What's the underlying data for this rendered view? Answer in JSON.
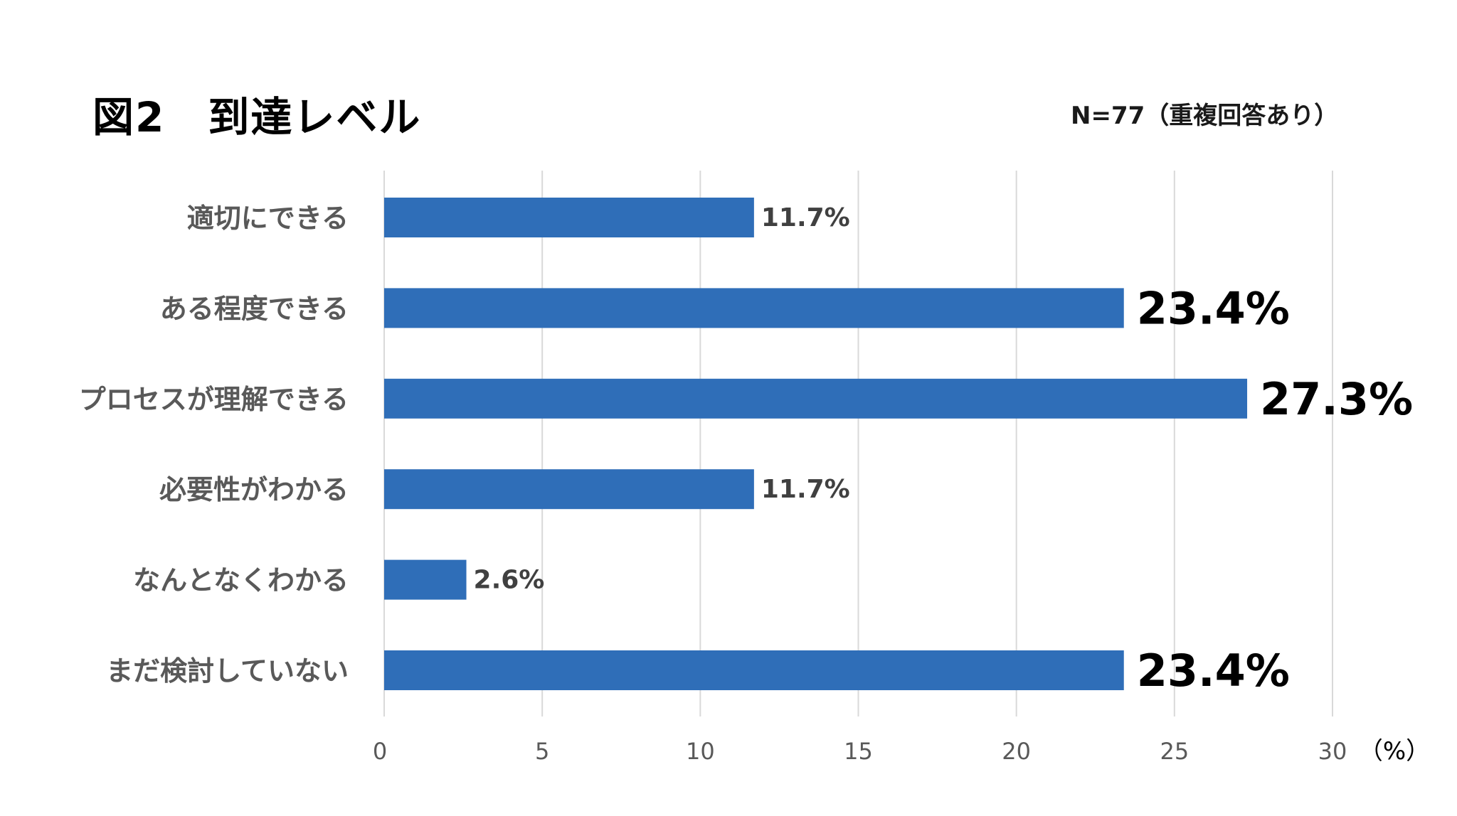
{
  "chart_data": {
    "type": "bar",
    "orientation": "horizontal",
    "title": "図2　到達レベル",
    "subtitle": "N=77（重複回答あり）",
    "categories": [
      "適切にできる",
      "ある程度できる",
      "プロセスが理解できる",
      "必要性がわかる",
      "なんとなくわかる",
      "まだ検討していない"
    ],
    "values": [
      11.7,
      23.4,
      27.3,
      11.7,
      2.6,
      23.4
    ],
    "data_labels": [
      "11.7%",
      "23.4%",
      "27.3%",
      "11.7%",
      "2.6%",
      "23.4%"
    ],
    "emphasized_labels": [
      false,
      true,
      true,
      false,
      false,
      true
    ],
    "xlim": [
      0,
      30
    ],
    "xticks": [
      "0",
      "5",
      "10",
      "15",
      "20",
      "25",
      "30"
    ],
    "x_unit": "（%）",
    "xlabel": "",
    "ylabel": "",
    "grid": "vertical",
    "legend": "none",
    "bar_color": "#2f6eb8",
    "gridline_color": "#d9d9d9",
    "category_label_color": "#595959",
    "small_label_color": "#404040",
    "big_label_color": "#000000",
    "tick_label_color": "#595959"
  }
}
